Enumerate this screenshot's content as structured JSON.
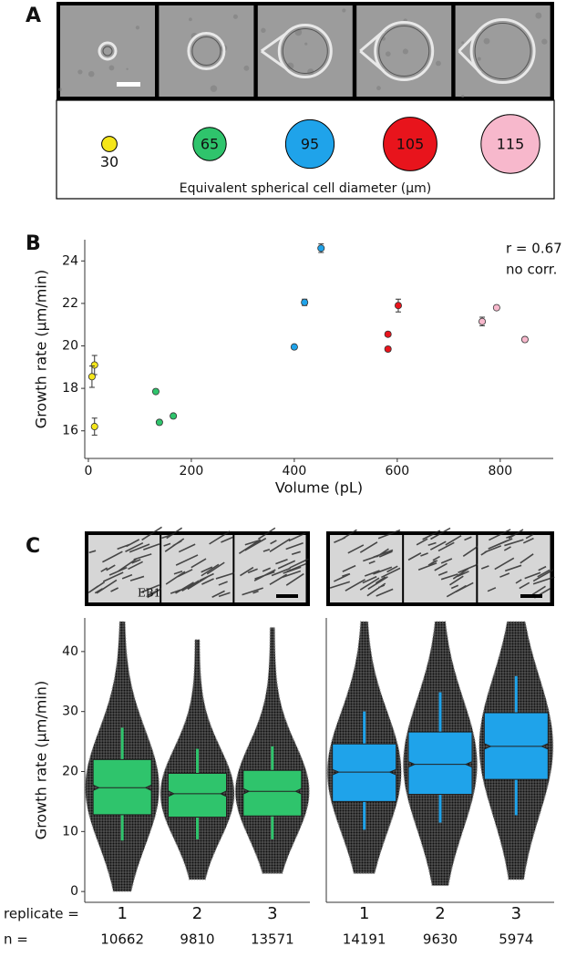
{
  "panel_labels": [
    "A",
    "B",
    "C"
  ],
  "panel_a": {
    "diameters": [
      30,
      65,
      95,
      105,
      115
    ],
    "colors": [
      "#f5e61a",
      "#2fc46c",
      "#1fa3ea",
      "#e8141c",
      "#f7b8cc"
    ],
    "caption": "Equivalent spherical cell diameter (µm)"
  },
  "panel_c": {
    "image_label": "EB1",
    "replicate_label": "replicate =",
    "n_label": "n ="
  },
  "chart_data": [
    {
      "type": "scatter",
      "x_label": "Volume (pL)",
      "y_label": "Growth rate (µm/min)",
      "annotations": [
        "r = 0.67",
        "no corr."
      ],
      "xlim": [
        -7,
        903
      ],
      "xticks": [
        0,
        200,
        400,
        600,
        800
      ],
      "ylim": [
        14.7,
        25.0
      ],
      "yticks": [
        16,
        18,
        20,
        22,
        24
      ],
      "series": [
        {
          "color": "#f5e61a",
          "x": [
            12,
            7,
            12
          ],
          "y": [
            19.1,
            18.55,
            16.2
          ],
          "err": [
            0.45,
            0.5,
            0.4
          ]
        },
        {
          "color": "#2fc46c",
          "x": [
            131,
            138,
            165
          ],
          "y": [
            17.85,
            16.4,
            16.7
          ],
          "err": [
            0.1,
            0.1,
            0.1
          ]
        },
        {
          "color": "#1fa3ea",
          "x": [
            400,
            420,
            452
          ],
          "y": [
            19.95,
            22.05,
            24.6
          ],
          "err": [
            0.1,
            0.15,
            0.2
          ]
        },
        {
          "color": "#e8141c",
          "x": [
            582,
            582,
            602
          ],
          "y": [
            20.55,
            19.85,
            21.9
          ],
          "err": [
            0.1,
            0.1,
            0.3
          ]
        },
        {
          "color": "#f7b8cc",
          "x": [
            765,
            793,
            848
          ],
          "y": [
            21.15,
            21.8,
            20.3
          ],
          "err": [
            0.2,
            0.1,
            0.1
          ]
        }
      ]
    },
    {
      "type": "box",
      "y_label": "Growth rate (µm/min)",
      "color": "#2fc46c",
      "ylim": [
        -1.8,
        45.6
      ],
      "yticks": [
        0,
        10,
        20,
        30,
        40
      ],
      "categories": [
        "1",
        "2",
        "3"
      ],
      "n": [
        10662,
        9810,
        13571
      ],
      "boxes": [
        {
          "min": 0,
          "whisker_low": 8.5,
          "q1": 12.8,
          "median": 17.3,
          "q3": 22,
          "whisker_high": 27.3,
          "max": 45
        },
        {
          "min": 2,
          "whisker_low": 8.7,
          "q1": 12.4,
          "median": 16.3,
          "q3": 19.7,
          "whisker_high": 23.8,
          "max": 42
        },
        {
          "min": 3,
          "whisker_low": 8.7,
          "q1": 12.6,
          "median": 16.7,
          "q3": 20.2,
          "whisker_high": 24.2,
          "max": 44
        }
      ]
    },
    {
      "type": "box",
      "color": "#1fa3ea",
      "ylim": [
        -1.8,
        45.6
      ],
      "categories": [
        "1",
        "2",
        "3"
      ],
      "n": [
        14191,
        9630,
        5974
      ],
      "boxes": [
        {
          "min": 3,
          "whisker_low": 10.3,
          "q1": 15,
          "median": 19.9,
          "q3": 24.6,
          "whisker_high": 30,
          "max": 45
        },
        {
          "min": 1,
          "whisker_low": 11.5,
          "q1": 16.2,
          "median": 21.2,
          "q3": 26.6,
          "whisker_high": 33.2,
          "max": 45
        },
        {
          "min": 2,
          "whisker_low": 12.7,
          "q1": 18.7,
          "median": 24.2,
          "q3": 29.8,
          "whisker_high": 35.9,
          "max": 45
        }
      ]
    }
  ]
}
